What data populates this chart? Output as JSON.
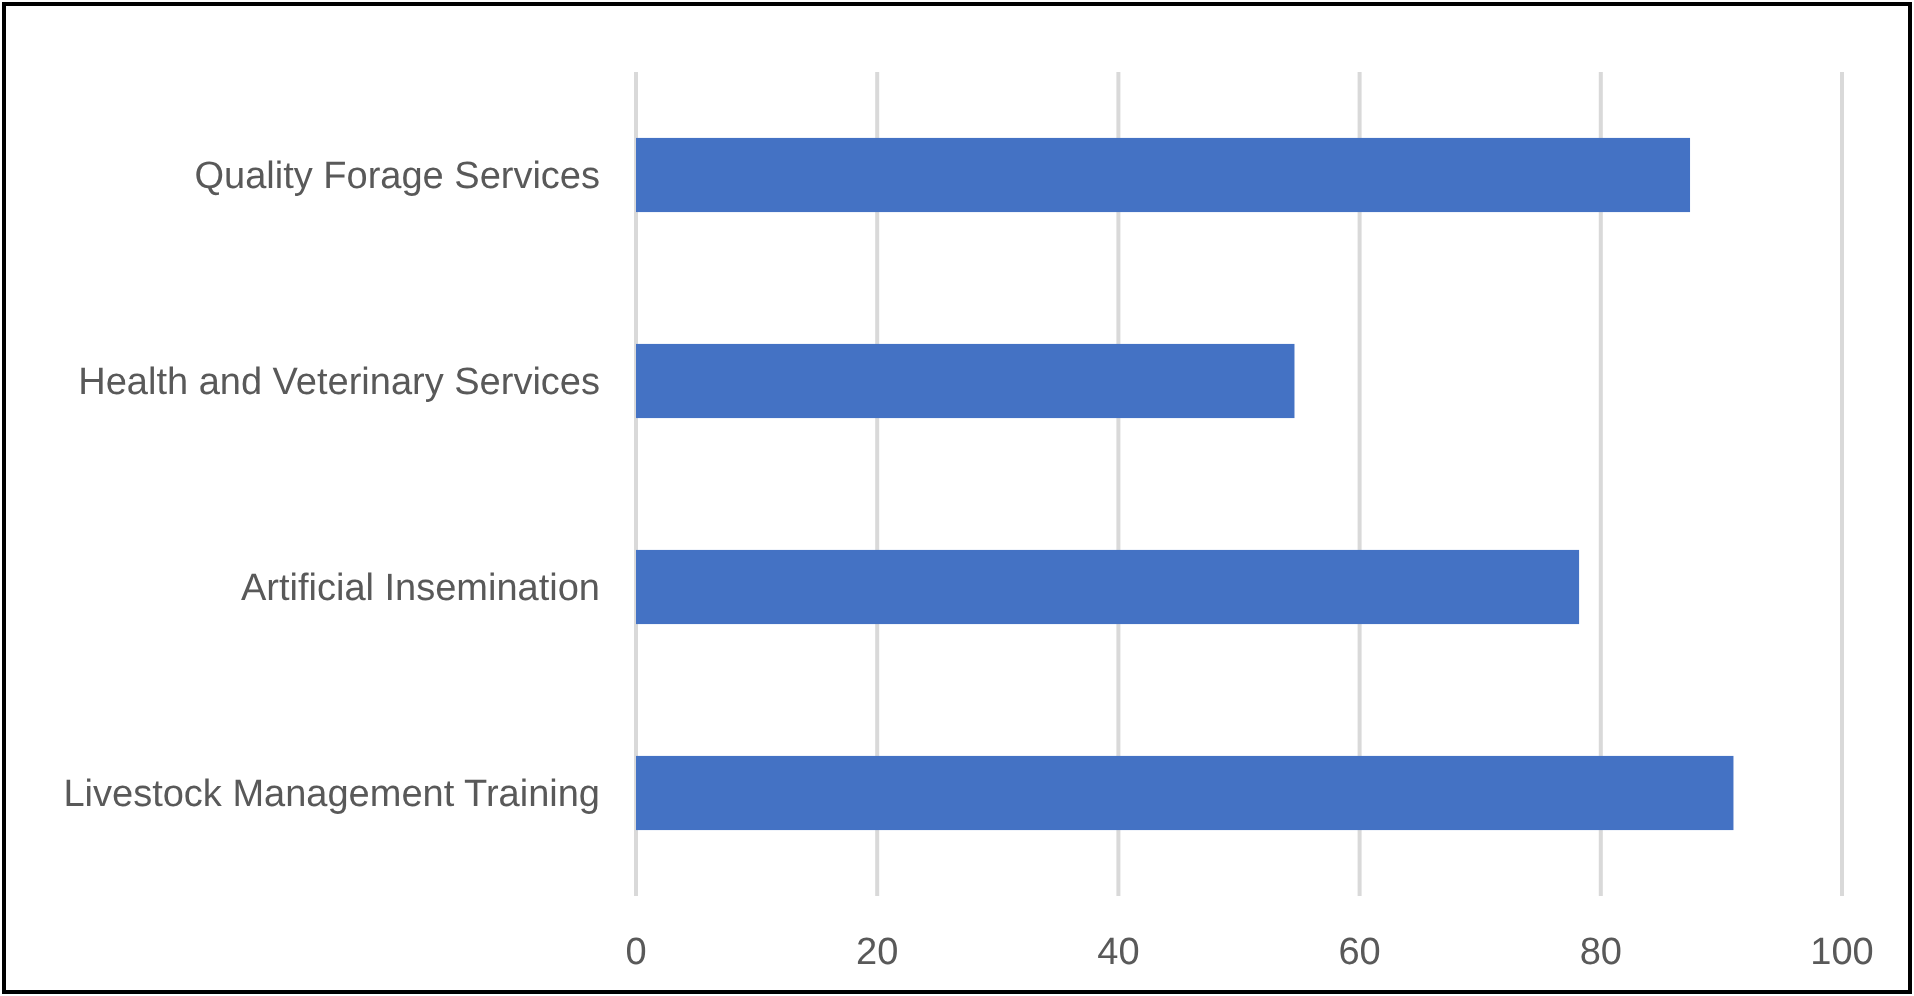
{
  "chart_data": {
    "type": "bar",
    "orientation": "horizontal",
    "categories": [
      "Quality Forage Services",
      "Health and Veterinary Services",
      "Artificial Insemination",
      "Livestock Management Training"
    ],
    "values": [
      87.4,
      54.6,
      78.2,
      91
    ],
    "color": "#4472c4",
    "xlim": [
      0,
      100
    ],
    "xticks": [
      0,
      20,
      40,
      60,
      80,
      100
    ],
    "grid": "x"
  }
}
